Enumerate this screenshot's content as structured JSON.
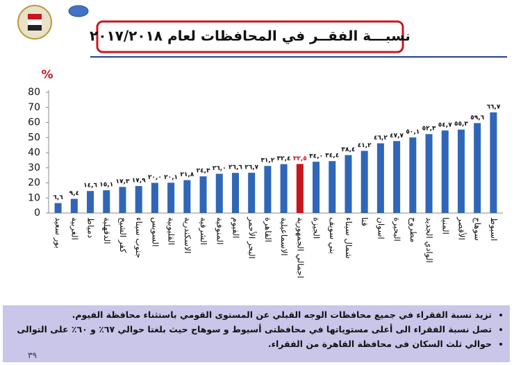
{
  "chart_data": {
    "type": "bar",
    "title": "نسبـــة الفقــر في المحافظات لعام ٢٠١٧/٢٠١٨",
    "y_unit": "%",
    "categories": [
      "بور سعيد",
      "الغربية",
      "دمياط",
      "الدقهلية",
      "كفر الشيخ",
      "جنوب سيناء",
      "السويس",
      "القليوبية",
      "الاسكندرية",
      "الشرقية",
      "المنوفية",
      "الفيوم",
      "البحر الأحمر",
      "القاهرة",
      "الاسماعيلية",
      "اجمالي الجمهورية",
      "الجيزة",
      "بني سويف",
      "شمال سيناء",
      "قنا",
      "اسوان",
      "البحيرة",
      "مطروح",
      "الوادي الجديد",
      "المنيا",
      "الأقصر",
      "سوهاج",
      "اسيوط"
    ],
    "values": [
      6.6,
      9.4,
      14.6,
      15.1,
      17.3,
      17.9,
      20.0,
      20.1,
      21.8,
      24.3,
      26.0,
      26.6,
      26.7,
      31.2,
      32.4,
      32.5,
      34.0,
      34.4,
      38.4,
      41.2,
      46.2,
      47.7,
      50.1,
      52.3,
      54.7,
      55.3,
      59.6,
      66.7
    ],
    "value_labels": [
      "٦,٦",
      "٩,٤",
      "١٤,٦",
      "١٥,١",
      "١٧,٣",
      "١٧,٩",
      "٢٠,٠",
      "٢٠,١",
      "٢١,٨",
      "٢٤,٣",
      "٢٦,٠",
      "٢٦,٦",
      "٢٦,٧",
      "٣١,٢",
      "٣٢,٤",
      "٣٢,٥",
      "٣٤,٠",
      "٣٤,٤",
      "٣٨,٤",
      "٤١,٢",
      "٤٦,٢",
      "٤٧,٧",
      "٥٠,١",
      "٥٢,٣",
      "٥٤,٧",
      "٥٥,٣",
      "٥٩,٦",
      "٦٦,٧"
    ],
    "colors": [
      "#2f66b8",
      "#2f66b8",
      "#2f66b8",
      "#2f66b8",
      "#2f66b8",
      "#2f66b8",
      "#2f66b8",
      "#2f66b8",
      "#2f66b8",
      "#2f66b8",
      "#2f66b8",
      "#2f66b8",
      "#2f66b8",
      "#2f66b8",
      "#2f66b8",
      "#c8161d",
      "#2f66b8",
      "#2f66b8",
      "#2f66b8",
      "#2f66b8",
      "#2f66b8",
      "#2f66b8",
      "#2f66b8",
      "#2f66b8",
      "#2f66b8",
      "#2f66b8",
      "#2f66b8",
      "#2f66b8"
    ],
    "ylim": [
      0,
      80
    ],
    "yticks": [
      0,
      10,
      20,
      30,
      40,
      50,
      60,
      70,
      80
    ],
    "grid": false
  },
  "notes": [
    "تزيد نسبة الفقراء في جميع محافظات الوجه القبلي عن المستوى القومي باستثناء محافظة الفيوم.",
    "تصل نسبة الفقراء الى أعلى مستوياتها في محافظتى أسيوط  و سوهاج  حيث بلغتا حوالي ٦٧٪ و ٦٠٪ على التوالى",
    "حوالي ثلث السكان فى محافظة القاهرة من الفقراء."
  ],
  "page_number": "٣٩"
}
